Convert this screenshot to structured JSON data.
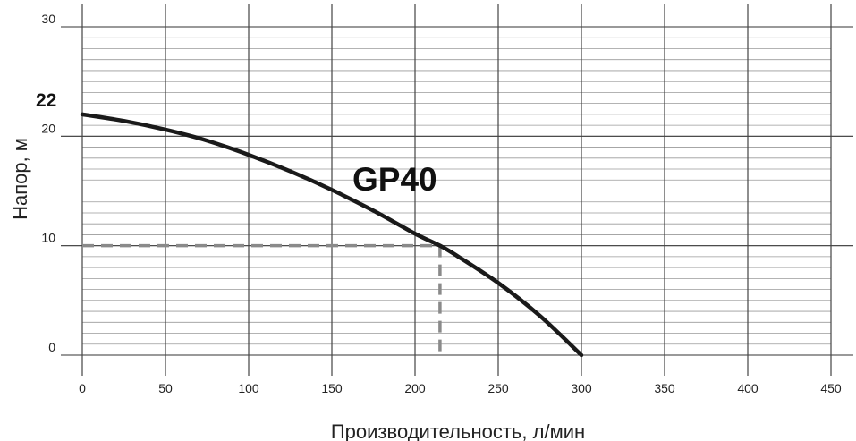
{
  "chart_data": {
    "type": "line",
    "title": "",
    "xlabel": "Производительность, л/мин",
    "ylabel": "Напор, м",
    "xlim": [
      0,
      450
    ],
    "ylim": [
      0,
      30
    ],
    "x_ticks": [
      "0",
      "50",
      "100",
      "150",
      "200",
      "250",
      "300",
      "350",
      "400",
      "450"
    ],
    "y_ticks": [
      "0",
      "10",
      "20",
      "30"
    ],
    "minor_y_step": 1,
    "grid": true,
    "series": [
      {
        "name": "GP40",
        "color": "#1a1a1a",
        "x": [
          0,
          25,
          50,
          75,
          100,
          125,
          150,
          175,
          200,
          215,
          225,
          250,
          275,
          300
        ],
        "y": [
          22,
          21.4,
          20.6,
          19.6,
          18.3,
          16.8,
          15.1,
          13.2,
          11.1,
          10,
          9.1,
          6.6,
          3.6,
          0
        ]
      }
    ],
    "annotations": {
      "max_head_label": "22",
      "operating_point": {
        "x": 215,
        "y": 10
      },
      "guide_color": "#8a8a8a"
    }
  }
}
